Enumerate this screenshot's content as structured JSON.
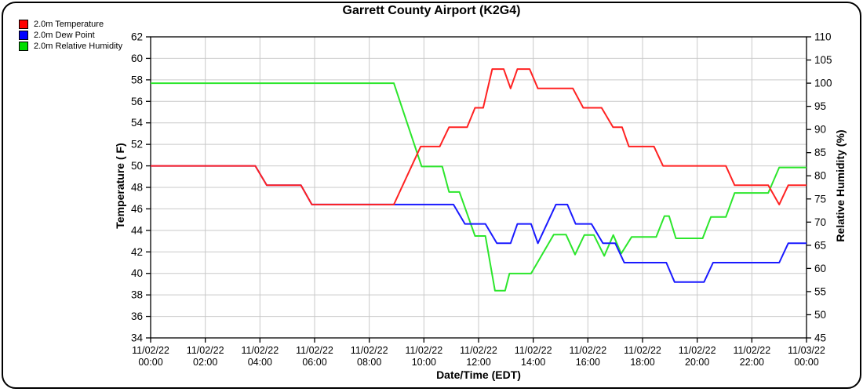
{
  "title": "Garrett County Airport (K2G4)",
  "legend": {
    "items": [
      {
        "label": "2.0m Temperature",
        "color": "#ff0000"
      },
      {
        "label": "2.0m Dew Point",
        "color": "#0000ff"
      },
      {
        "label": "2.0m Relative Humidity",
        "color": "#00dd00"
      }
    ]
  },
  "colors": {
    "grid": "#c9c9c9",
    "axis": "#000000",
    "temperature_line": "#ff2222",
    "dew_point_line": "#1a1aff",
    "humidity_line": "#2ce62c"
  },
  "chart_data": {
    "type": "line",
    "title": "Garrett County Airport (K2G4)",
    "xlabel": "Date/Time (EDT)",
    "ylabel_left": "Temperature ( F)",
    "ylabel_right": "Relative Humidity (%)",
    "grid": true,
    "legend_position": "top-left",
    "x_axis": {
      "range_hours": [
        0,
        24
      ],
      "tick_interval_hours": 2,
      "tick_labels": [
        [
          "11/02/22",
          "00:00"
        ],
        [
          "11/02/22",
          "02:00"
        ],
        [
          "11/02/22",
          "04:00"
        ],
        [
          "11/02/22",
          "06:00"
        ],
        [
          "11/02/22",
          "08:00"
        ],
        [
          "11/02/22",
          "10:00"
        ],
        [
          "11/02/22",
          "12:00"
        ],
        [
          "11/02/22",
          "14:00"
        ],
        [
          "11/02/22",
          "16:00"
        ],
        [
          "11/02/22",
          "18:00"
        ],
        [
          "11/02/22",
          "20:00"
        ],
        [
          "11/02/22",
          "22:00"
        ],
        [
          "11/03/22",
          "00:00"
        ]
      ]
    },
    "y_left": {
      "label": "Temperature ( F)",
      "min": 34,
      "max": 62,
      "step": 2
    },
    "y_right": {
      "label": "Relative Humidity (%)",
      "min": 45,
      "max": 110,
      "step": 5
    },
    "series": [
      {
        "name": "2.0m Relative Humidity",
        "axis": "right",
        "color": "#2ce62c",
        "units": "%",
        "points": [
          [
            0,
            100
          ],
          [
            8.9,
            100
          ],
          [
            9.92,
            82
          ],
          [
            10.67,
            82
          ],
          [
            10.92,
            76.5
          ],
          [
            11.3,
            76.5
          ],
          [
            11.87,
            67
          ],
          [
            12.25,
            67
          ],
          [
            12.6,
            55.2
          ],
          [
            12.97,
            55.2
          ],
          [
            13.13,
            58.9
          ],
          [
            13.92,
            58.9
          ],
          [
            14.75,
            67.3
          ],
          [
            15.2,
            67.3
          ],
          [
            15.53,
            63
          ],
          [
            15.87,
            67.2
          ],
          [
            16.22,
            67.2
          ],
          [
            16.6,
            62.7
          ],
          [
            16.93,
            67.2
          ],
          [
            17.22,
            63.2
          ],
          [
            17.6,
            66.8
          ],
          [
            18.5,
            66.8
          ],
          [
            18.8,
            71.3
          ],
          [
            18.97,
            71.3
          ],
          [
            19.22,
            66.5
          ],
          [
            20.2,
            66.5
          ],
          [
            20.5,
            71.1
          ],
          [
            21.05,
            71.1
          ],
          [
            21.37,
            76.3
          ],
          [
            22.6,
            76.3
          ],
          [
            23,
            81.8
          ],
          [
            24,
            81.8
          ]
        ]
      },
      {
        "name": "2.0m Dew Point",
        "axis": "left",
        "color": "#1a1aff",
        "units": "F",
        "points": [
          [
            0,
            50
          ],
          [
            3.83,
            50
          ],
          [
            4.25,
            48.2
          ],
          [
            5.5,
            48.2
          ],
          [
            5.9,
            46.4
          ],
          [
            11.08,
            46.4
          ],
          [
            11.5,
            44.6
          ],
          [
            12.25,
            44.6
          ],
          [
            12.67,
            42.8
          ],
          [
            13.17,
            42.8
          ],
          [
            13.42,
            44.6
          ],
          [
            13.92,
            44.6
          ],
          [
            14.17,
            42.8
          ],
          [
            14.83,
            46.4
          ],
          [
            15.25,
            46.4
          ],
          [
            15.55,
            44.6
          ],
          [
            16.13,
            44.6
          ],
          [
            16.55,
            42.8
          ],
          [
            17,
            42.8
          ],
          [
            17.33,
            41
          ],
          [
            18.87,
            41
          ],
          [
            19.17,
            39.2
          ],
          [
            20.25,
            39.2
          ],
          [
            20.58,
            41
          ],
          [
            23,
            41
          ],
          [
            23.33,
            42.8
          ],
          [
            24,
            42.8
          ]
        ]
      },
      {
        "name": "2.0m Temperature",
        "axis": "left",
        "color": "#ff2222",
        "units": "F",
        "points": [
          [
            0,
            50
          ],
          [
            3.83,
            50
          ],
          [
            4.25,
            48.2
          ],
          [
            5.5,
            48.2
          ],
          [
            5.9,
            46.4
          ],
          [
            8.9,
            46.4
          ],
          [
            9.88,
            51.8
          ],
          [
            10.58,
            51.8
          ],
          [
            10.92,
            53.6
          ],
          [
            11.58,
            53.6
          ],
          [
            11.87,
            55.4
          ],
          [
            12.17,
            55.4
          ],
          [
            12.5,
            59
          ],
          [
            12.92,
            59
          ],
          [
            13.17,
            57.2
          ],
          [
            13.42,
            59
          ],
          [
            13.87,
            59
          ],
          [
            14.17,
            57.2
          ],
          [
            15.45,
            57.2
          ],
          [
            15.83,
            55.4
          ],
          [
            16.5,
            55.4
          ],
          [
            16.92,
            53.6
          ],
          [
            17.25,
            53.6
          ],
          [
            17.5,
            51.8
          ],
          [
            18.42,
            51.8
          ],
          [
            18.75,
            50
          ],
          [
            21.05,
            50
          ],
          [
            21.37,
            48.2
          ],
          [
            22.6,
            48.2
          ],
          [
            23,
            46.4
          ],
          [
            23.33,
            48.2
          ],
          [
            24,
            48.2
          ]
        ]
      }
    ]
  }
}
